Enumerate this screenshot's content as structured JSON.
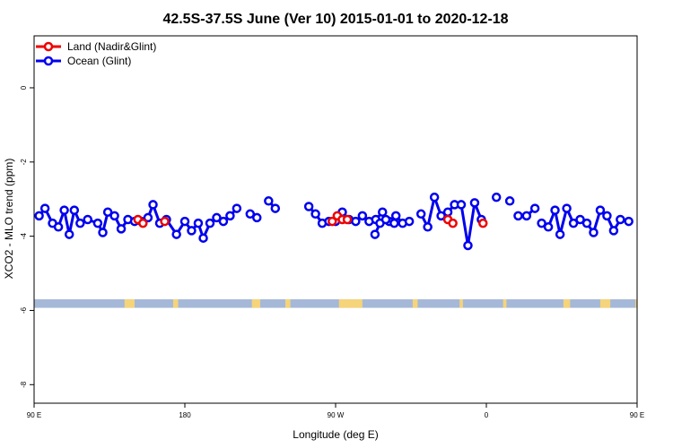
{
  "chart_data": {
    "type": "line",
    "title": "42.5S-37.5S June (Ver 10)   2015-01-01 to 2020-12-18",
    "xlabel": "Longitude (deg E)",
    "ylabel": "XCO2 - MLO trend (ppm)",
    "xlim": [
      90,
      450
    ],
    "ylim": [
      -8.5,
      1.4
    ],
    "x_ticks": [
      {
        "value": 90,
        "label": "90 E"
      },
      {
        "value": 180,
        "label": "180"
      },
      {
        "value": 270,
        "label": "90 W"
      },
      {
        "value": 360,
        "label": "0"
      },
      {
        "value": 450,
        "label": "90 E"
      },
      {
        "value": 540,
        "label": "180"
      }
    ],
    "y_ticks": [
      {
        "value": 0,
        "label": "0"
      },
      {
        "value": -2,
        "label": "-2"
      },
      {
        "value": -4,
        "label": "-4"
      },
      {
        "value": -6,
        "label": "-6"
      },
      {
        "value": -8,
        "label": "-8"
      }
    ],
    "legend_position": "top-left",
    "colors": {
      "land": "#ee0000",
      "ocean": "#0000ee",
      "surface_band_ocean": "#a5b8d8",
      "surface_band_land": "#f5d47a"
    },
    "series": [
      {
        "name": "Land (Nadir&Glint)",
        "color": "#ee0000",
        "segments": [
          [
            [
              152.0,
              -3.55
            ],
            [
              155.0,
              -3.65
            ]
          ],
          [
            [
              168.0,
              -3.6
            ]
          ],
          [
            [
              268.0,
              -3.6
            ],
            [
              271.0,
              -3.45
            ],
            [
              274.0,
              -3.55
            ],
            [
              277.0,
              -3.55
            ]
          ],
          [
            [
              337.0,
              -3.55
            ],
            [
              340.0,
              -3.65
            ]
          ],
          [
            [
              358.0,
              -3.65
            ]
          ]
        ]
      },
      {
        "name": "Ocean (Glint)",
        "color": "#0000ee",
        "segments": [
          [
            [
              93.0,
              -3.45
            ],
            [
              96.5,
              -3.25
            ],
            [
              101.0,
              -3.65
            ],
            [
              104.5,
              -3.75
            ],
            [
              108.0,
              -3.3
            ],
            [
              111.0,
              -3.95
            ],
            [
              114.0,
              -3.3
            ],
            [
              117.5,
              -3.65
            ],
            [
              122.0,
              -3.55
            ],
            [
              128.0,
              -3.65
            ],
            [
              131.0,
              -3.9
            ],
            [
              134.0,
              -3.35
            ],
            [
              138.0,
              -3.45
            ],
            [
              142.0,
              -3.8
            ],
            [
              146.0,
              -3.55
            ],
            [
              150.0,
              -3.6
            ],
            [
              154.0,
              -3.6
            ],
            [
              158.0,
              -3.5
            ],
            [
              161.0,
              -3.15
            ],
            [
              165.0,
              -3.65
            ],
            [
              169.0,
              -3.55
            ],
            [
              175.0,
              -3.95
            ],
            [
              180.0,
              -3.6
            ],
            [
              184.0,
              -3.85
            ],
            [
              188.0,
              -3.65
            ],
            [
              191.0,
              -4.05
            ],
            [
              195.0,
              -3.65
            ],
            [
              199.0,
              -3.5
            ],
            [
              203.0,
              -3.6
            ],
            [
              207.0,
              -3.45
            ],
            [
              211.0,
              -3.25
            ]
          ],
          [
            [
              219.0,
              -3.4
            ],
            [
              223.0,
              -3.5
            ]
          ],
          [
            [
              230.0,
              -3.05
            ],
            [
              234.0,
              -3.25
            ]
          ],
          [
            [
              254.0,
              -3.2
            ],
            [
              258.0,
              -3.4
            ],
            [
              262.0,
              -3.65
            ],
            [
              266.0,
              -3.6
            ],
            [
              270.0,
              -3.6
            ],
            [
              274.0,
              -3.35
            ],
            [
              278.0,
              -3.55
            ],
            [
              282.0,
              -3.6
            ],
            [
              286.0,
              -3.45
            ],
            [
              290.0,
              -3.6
            ],
            [
              294.0,
              -3.55
            ],
            [
              298.0,
              -3.35
            ],
            [
              302.0,
              -3.6
            ],
            [
              306.0,
              -3.45
            ],
            [
              310.0,
              -3.65
            ],
            [
              314.0,
              -3.6
            ]
          ],
          [
            [
              293.5,
              -3.95
            ],
            [
              296.5,
              -3.65
            ],
            [
              300.0,
              -3.55
            ],
            [
              305.0,
              -3.65
            ]
          ],
          [
            [
              321.0,
              -3.4
            ],
            [
              325.0,
              -3.75
            ],
            [
              329.0,
              -2.95
            ],
            [
              333.0,
              -3.45
            ],
            [
              337.0,
              -3.35
            ],
            [
              341.0,
              -3.15
            ],
            [
              345.0,
              -3.15
            ],
            [
              349.0,
              -4.25
            ],
            [
              353.0,
              -3.1
            ],
            [
              357.0,
              -3.55
            ]
          ],
          [
            [
              366.0,
              -2.95
            ]
          ],
          [
            [
              374.0,
              -3.05
            ]
          ],
          [
            [
              379.0,
              -3.45
            ],
            [
              384.0,
              -3.45
            ],
            [
              389.0,
              -3.25
            ]
          ],
          [
            [
              393.0,
              -3.65
            ],
            [
              397.0,
              -3.75
            ],
            [
              401.0,
              -3.3
            ],
            [
              404.0,
              -3.95
            ],
            [
              408.0,
              -3.25
            ],
            [
              412.0,
              -3.65
            ],
            [
              416.0,
              -3.55
            ],
            [
              420.0,
              -3.65
            ],
            [
              424.0,
              -3.9
            ],
            [
              428.0,
              -3.3
            ],
            [
              432.0,
              -3.45
            ],
            [
              436.0,
              -3.85
            ],
            [
              440.0,
              -3.55
            ],
            [
              445.0,
              -3.6
            ]
          ]
        ]
      }
    ],
    "surface_band": {
      "y_range": [
        -5.93,
        -5.7
      ],
      "land_ranges": [
        [
          144,
          150
        ],
        [
          173,
          176
        ],
        [
          220,
          225
        ],
        [
          240,
          243
        ],
        [
          272,
          286
        ],
        [
          316,
          319
        ],
        [
          344,
          346
        ],
        [
          370,
          372
        ],
        [
          406,
          410
        ],
        [
          428,
          434
        ],
        [
          449,
          450
        ]
      ]
    }
  }
}
